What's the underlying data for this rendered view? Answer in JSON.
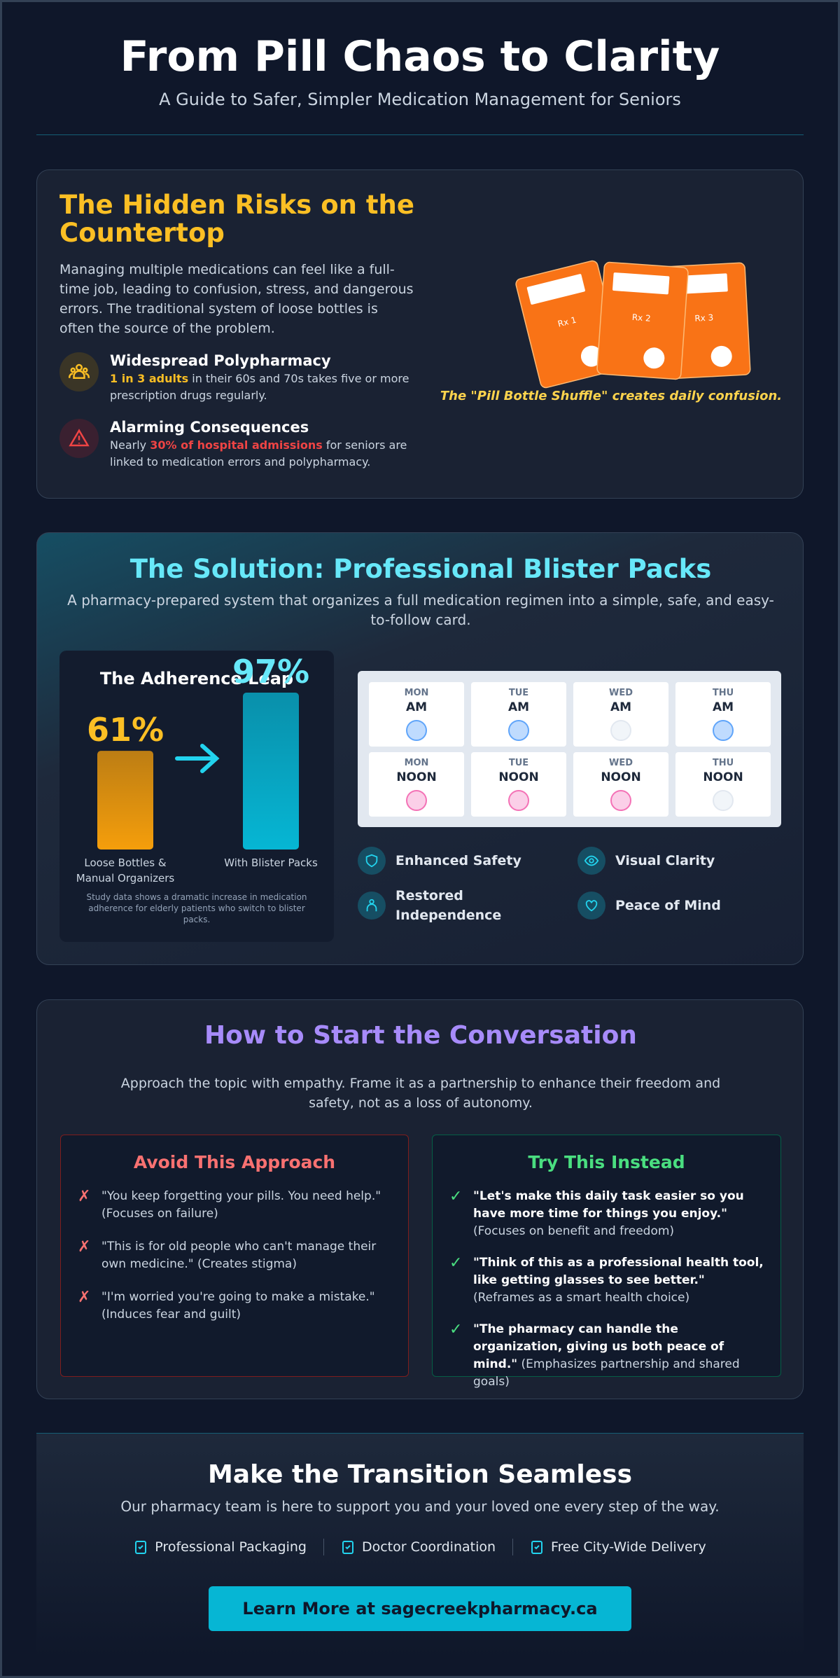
{
  "header": {
    "title": "From Pill Chaos to Clarity",
    "subtitle": "A Guide to Safer, Simpler Medication Management for Seniors"
  },
  "risks": {
    "title": "The Hidden Risks on the Countertop",
    "intro": "Managing multiple medications can feel like a full-time job, leading to confusion, stress, and dangerous errors. The traditional system of loose bottles is often the source of the problem.",
    "items": [
      {
        "title": "Widespread Polypharmacy",
        "highlight": "1 in 3 adults",
        "after": " in their 60s and 70s takes five or more prescription drugs regularly.",
        "color": "#fbbf24"
      },
      {
        "title": "Alarming Consequences",
        "before": "Nearly ",
        "highlight": "30% of hospital admissions",
        "after": " for seniors are linked to medication errors and polypharmacy.",
        "color": "#ef4444"
      }
    ],
    "bottles": [
      "Rx 1",
      "Rx 2",
      "Rx 3"
    ],
    "caption": "The \"Pill Bottle Shuffle\" creates daily confusion."
  },
  "solution": {
    "title": "The Solution: Professional Blister Packs",
    "subtitle": "A pharmacy-prepared system that organizes a full medication regimen into a simple, safe, and easy-to-follow card.",
    "schedule": [
      {
        "day": "MON",
        "slot": "AM",
        "filled": true
      },
      {
        "day": "TUE",
        "slot": "AM",
        "filled": true
      },
      {
        "day": "WED",
        "slot": "AM",
        "filled": false
      },
      {
        "day": "THU",
        "slot": "AM",
        "filled": true
      },
      {
        "day": "MON",
        "slot": "NOON",
        "filled": true
      },
      {
        "day": "TUE",
        "slot": "NOON",
        "filled": true
      },
      {
        "day": "WED",
        "slot": "NOON",
        "filled": true
      },
      {
        "day": "THU",
        "slot": "NOON",
        "filled": false
      }
    ],
    "features": [
      "Enhanced Safety",
      "Visual Clarity",
      "Restored Independence",
      "Peace of Mind"
    ]
  },
  "chart_data": {
    "type": "bar",
    "title": "The Adherence Leap",
    "categories": [
      "Loose Bottles & Manual Organizers",
      "With Blister Packs"
    ],
    "values": [
      61,
      97
    ],
    "value_labels": [
      "61%",
      "97%"
    ],
    "colors": [
      "#f59e0b",
      "#06b6d4"
    ],
    "note": "Study data shows a dramatic increase in medication adherence for elderly patients who switch to blister packs."
  },
  "conversation": {
    "title": "How to Start the Conversation",
    "intro": "Approach the topic with empathy. Frame it as a partnership to enhance their freedom and safety, not as a loss of autonomy.",
    "avoid": {
      "title": "Avoid This Approach",
      "items": [
        {
          "quote": "\"You keep forgetting your pills. You need help.\"",
          "note": "(Focuses on failure)"
        },
        {
          "quote": "\"This is for old people who can't manage their own medicine.\"",
          "note": "(Creates stigma)"
        },
        {
          "quote": "\"I'm worried you're going to make a mistake.\"",
          "note": "(Induces fear and guilt)"
        }
      ]
    },
    "try": {
      "title": "Try This Instead",
      "items": [
        {
          "quote": "\"Let's make this daily task easier so you have more time for things you enjoy.\"",
          "note": "(Focuses on benefit and freedom)"
        },
        {
          "quote": "\"Think of this as a professional health tool, like getting glasses to see better.\"",
          "note": "(Reframes as a smart health choice)"
        },
        {
          "quote": "\"The pharmacy can handle the organization, giving us both peace of mind.\"",
          "note": "(Emphasizes partnership and shared goals)"
        }
      ]
    }
  },
  "footer": {
    "title": "Make the Transition Seamless",
    "subtitle": "Our pharmacy team is here to support you and your loved one every step of the way.",
    "services": [
      "Professional Packaging",
      "Doctor Coordination",
      "Free City-Wide Delivery"
    ],
    "cta": "Learn More at sagecreekpharmacy.ca"
  }
}
